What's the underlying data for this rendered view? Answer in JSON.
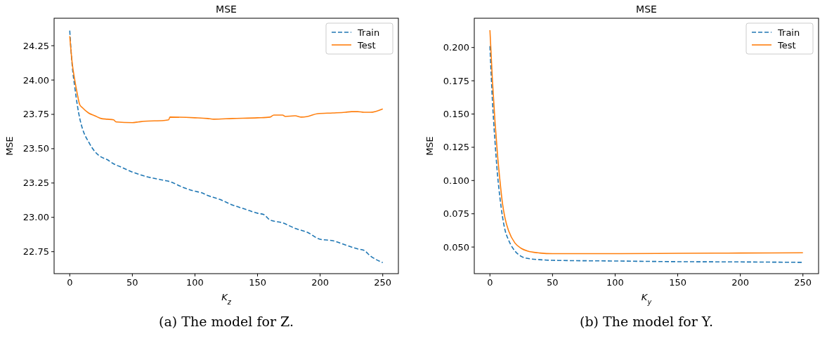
{
  "chart_data": [
    {
      "type": "line",
      "title": "MSE",
      "xlabel": "K$_{z}$",
      "ylabel": "MSE",
      "legend": "top right",
      "line_style": "solid",
      "annotations": [
        "(a) The model for Z."
      ],
      "xlim": [
        -12.5,
        262.5
      ],
      "xticks": [
        0,
        50,
        100,
        150,
        200,
        250
      ],
      "ylim": [
        22.59,
        24.45
      ],
      "yticks": [
        {
          "value": 22.75,
          "label": "22.75"
        },
        {
          "value": 23,
          "label": "23.00"
        },
        {
          "value": 23.25,
          "label": "23.25"
        },
        {
          "value": 23.5,
          "label": "23.50"
        },
        {
          "value": 23.75,
          "label": "23.75"
        },
        {
          "value": 24,
          "label": "24.00"
        },
        {
          "value": 24.25,
          "label": "24.25"
        }
      ],
      "series": [
        {
          "name": "Train",
          "color": "#1f77b4",
          "line_style": "dashed",
          "x": [
            0,
            2,
            4,
            6,
            8,
            10,
            15,
            20,
            25,
            30,
            35,
            40,
            50,
            60,
            75,
            80,
            90,
            100,
            105,
            110,
            120,
            130,
            140,
            150,
            155,
            160,
            170,
            180,
            190,
            200,
            210,
            220,
            230,
            235,
            240,
            250
          ],
          "values": [
            24.36,
            24.1,
            23.95,
            23.82,
            23.72,
            23.65,
            23.55,
            23.48,
            23.44,
            23.42,
            23.39,
            23.37,
            23.33,
            23.3,
            23.27,
            23.26,
            23.22,
            23.19,
            23.18,
            23.16,
            23.13,
            23.09,
            23.06,
            23.03,
            23.02,
            22.98,
            22.96,
            22.92,
            22.89,
            22.84,
            22.83,
            22.8,
            22.77,
            22.76,
            22.72,
            22.67
          ]
        },
        {
          "name": "Test",
          "color": "#ff7f0e",
          "x": [
            0,
            2,
            4,
            6,
            8,
            10,
            15,
            20,
            25,
            30,
            35,
            37,
            50,
            55,
            60,
            75,
            79,
            80,
            100,
            110,
            115,
            130,
            150,
            160,
            163,
            170,
            172,
            180,
            185,
            190,
            198,
            210,
            220,
            225,
            230,
            235,
            240,
            250
          ],
          "values": [
            24.32,
            24.12,
            24.0,
            23.9,
            23.82,
            23.8,
            23.76,
            23.74,
            23.72,
            23.715,
            23.71,
            23.695,
            23.69,
            23.695,
            23.7,
            23.705,
            23.71,
            23.73,
            23.725,
            23.72,
            23.715,
            23.72,
            23.725,
            23.73,
            23.745,
            23.745,
            23.735,
            23.74,
            23.73,
            23.735,
            23.755,
            23.76,
            23.765,
            23.77,
            23.77,
            23.765,
            23.765,
            23.79
          ]
        }
      ]
    },
    {
      "type": "line",
      "title": "MSE",
      "xlabel": "K$_{y}$",
      "ylabel": "MSE",
      "legend": "top right",
      "line_style": "solid",
      "annotations": [
        "(b) The model for Y."
      ],
      "xlim": [
        -12.5,
        262.5
      ],
      "xticks": [
        0,
        50,
        100,
        150,
        200,
        250
      ],
      "ylim": [
        0.03,
        0.222
      ],
      "yticks": [
        {
          "value": 0.05,
          "label": "0.050"
        },
        {
          "value": 0.075,
          "label": "0.075"
        },
        {
          "value": 0.1,
          "label": "0.100"
        },
        {
          "value": 0.125,
          "label": "0.125"
        },
        {
          "value": 0.15,
          "label": "0.150"
        },
        {
          "value": 0.175,
          "label": "0.175"
        },
        {
          "value": 0.2,
          "label": "0.200"
        }
      ],
      "series": [
        {
          "name": "Train",
          "color": "#1f77b4",
          "line_style": "dashed",
          "x": [
            0,
            2,
            4,
            6,
            8,
            10,
            12,
            15,
            20,
            25,
            30,
            40,
            50,
            100,
            150,
            200,
            250
          ],
          "values": [
            0.201,
            0.16,
            0.13,
            0.105,
            0.087,
            0.073,
            0.063,
            0.055,
            0.047,
            0.043,
            0.0415,
            0.0405,
            0.04,
            0.0395,
            0.039,
            0.0388,
            0.0385
          ]
        },
        {
          "name": "Test",
          "color": "#ff7f0e",
          "x": [
            0,
            2,
            4,
            6,
            8,
            10,
            12,
            15,
            20,
            25,
            30,
            40,
            50,
            100,
            150,
            200,
            250
          ],
          "values": [
            0.213,
            0.175,
            0.145,
            0.12,
            0.1,
            0.083,
            0.072,
            0.062,
            0.053,
            0.049,
            0.047,
            0.0455,
            0.045,
            0.045,
            0.0453,
            0.0455,
            0.0457
          ]
        }
      ]
    }
  ]
}
